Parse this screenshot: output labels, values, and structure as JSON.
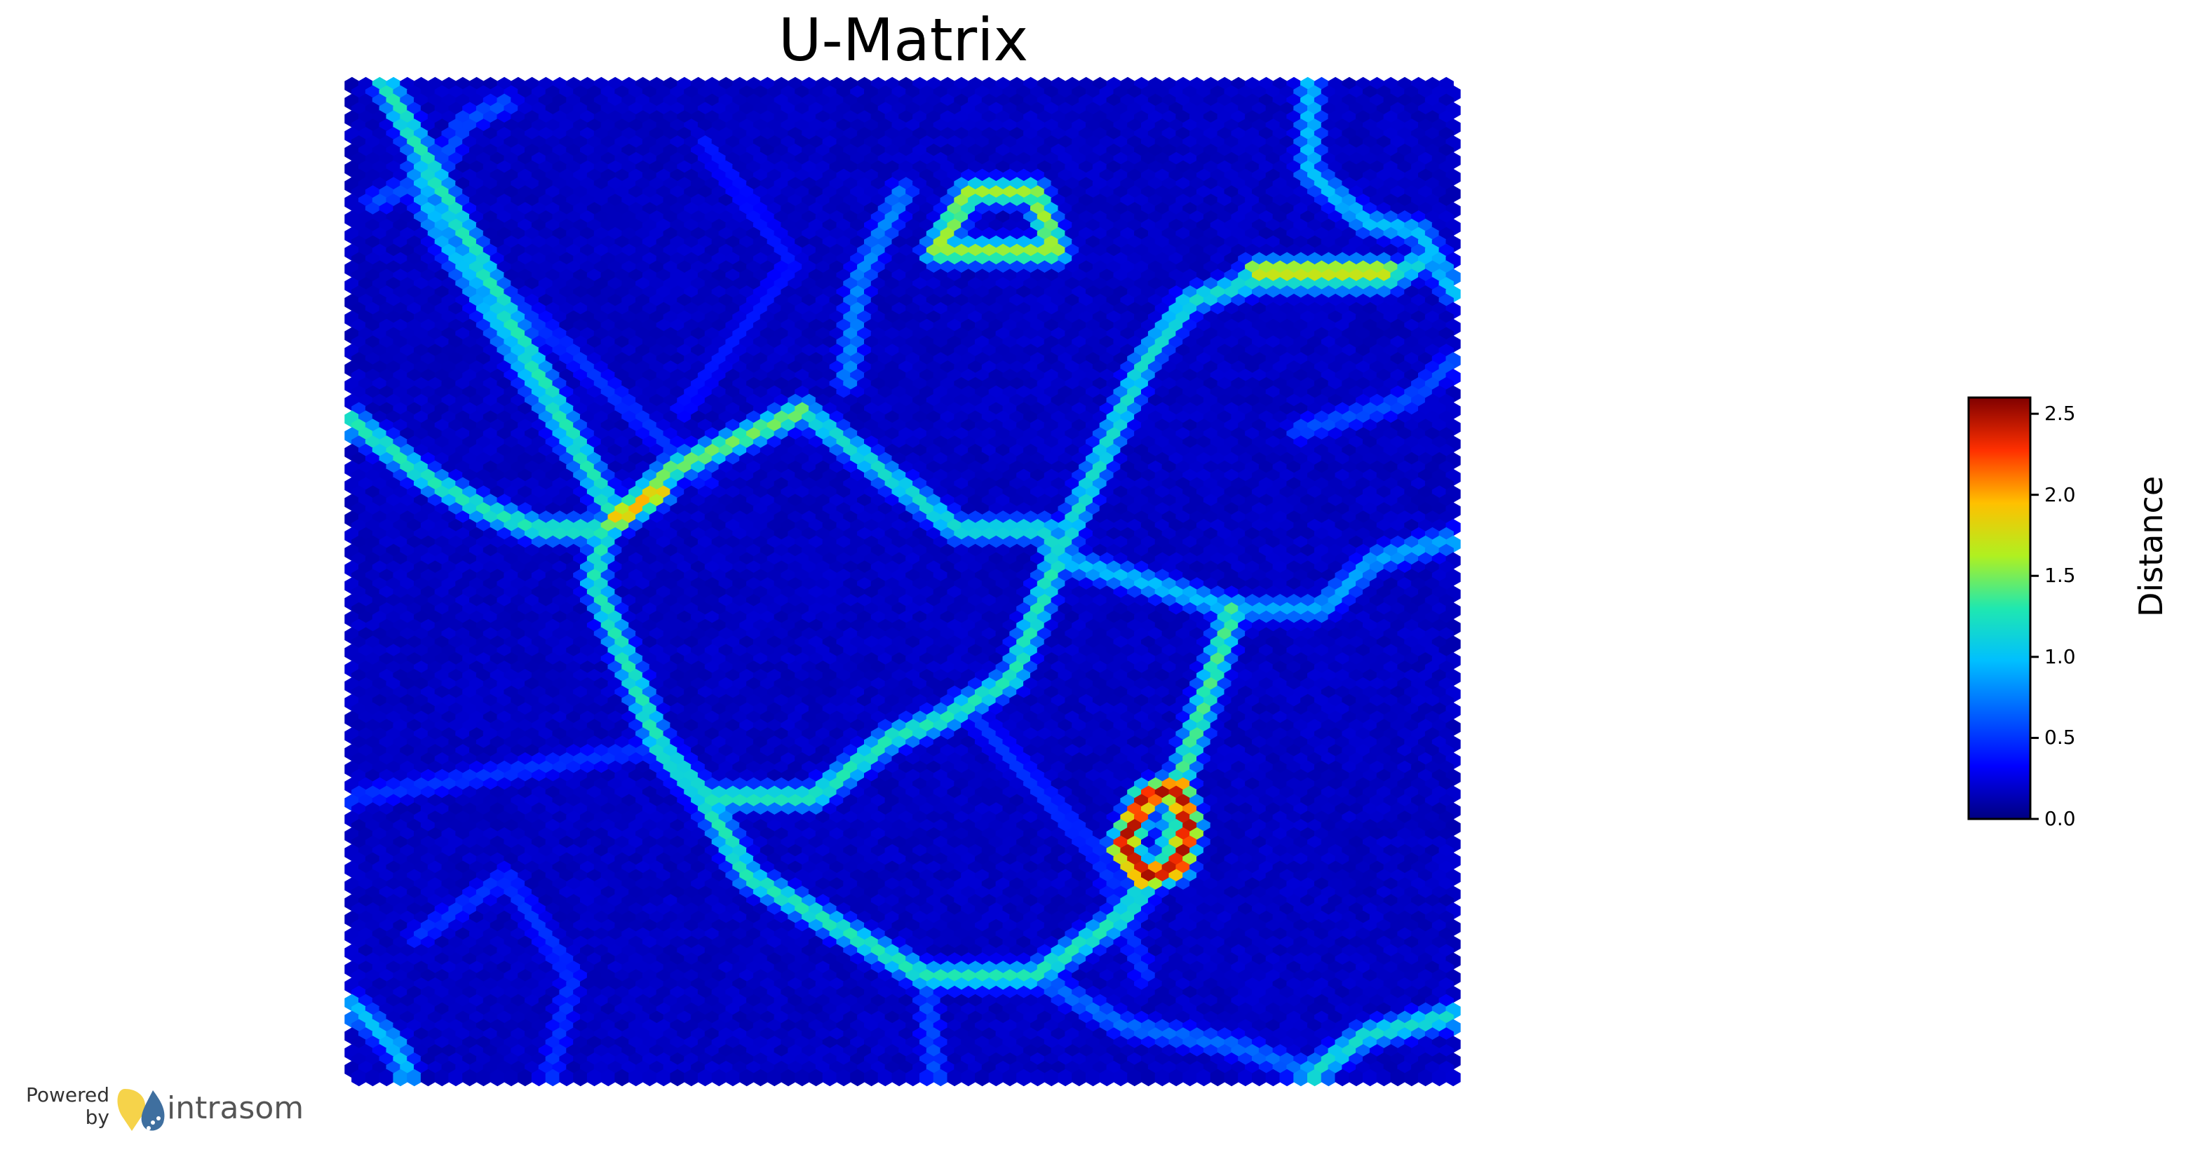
{
  "chart_data": {
    "type": "heatmap",
    "title": "U-Matrix",
    "colorbar": {
      "label": "Distance",
      "min": 0.0,
      "max": 2.6,
      "ticks": [
        "0.0",
        "0.5",
        "1.0",
        "1.5",
        "2.0",
        "2.5"
      ],
      "tick_values": [
        0.0,
        0.5,
        1.0,
        1.5,
        2.0,
        2.5
      ],
      "colormap": "jet"
    },
    "grid": {
      "shape": "hexagonal",
      "columns": 80,
      "rows": 120
    },
    "background_value": 0.2,
    "ridges": [
      {
        "points": [
          [
            0.03,
            0.0
          ],
          [
            0.24,
            0.44
          ]
        ],
        "value": 1.3
      },
      {
        "points": [
          [
            0.06,
            0.08
          ],
          [
            0.07,
            0.13
          ],
          [
            0.24,
            0.44
          ]
        ],
        "value": 1.0
      },
      {
        "points": [
          [
            0.0,
            0.34
          ],
          [
            0.07,
            0.4
          ],
          [
            0.12,
            0.43
          ],
          [
            0.17,
            0.45
          ],
          [
            0.23,
            0.45
          ]
        ],
        "value": 1.3
      },
      {
        "points": [
          [
            0.23,
            0.45
          ],
          [
            0.29,
            0.39
          ],
          [
            0.41,
            0.33
          ]
        ],
        "value": 1.5
      },
      {
        "points": [
          [
            0.24,
            0.44
          ],
          [
            0.28,
            0.41
          ]
        ],
        "value": 2.0
      },
      {
        "points": [
          [
            0.41,
            0.33
          ],
          [
            0.55,
            0.45
          ],
          [
            0.63,
            0.45
          ],
          [
            0.64,
            0.48
          ]
        ],
        "value": 1.2
      },
      {
        "points": [
          [
            0.23,
            0.45
          ],
          [
            0.22,
            0.5
          ],
          [
            0.28,
            0.67
          ],
          [
            0.32,
            0.72
          ],
          [
            0.42,
            0.72
          ],
          [
            0.49,
            0.66
          ],
          [
            0.54,
            0.64
          ],
          [
            0.6,
            0.6
          ],
          [
            0.64,
            0.48
          ]
        ],
        "value": 1.3
      },
      {
        "points": [
          [
            0.32,
            0.72
          ],
          [
            0.36,
            0.8
          ],
          [
            0.52,
            0.9
          ],
          [
            0.62,
            0.9
          ],
          [
            0.7,
            0.84
          ],
          [
            0.74,
            0.78
          ],
          [
            0.75,
            0.71
          ]
        ],
        "value": 1.3
      },
      {
        "points": [
          [
            0.64,
            0.48
          ],
          [
            0.71,
            0.5
          ],
          [
            0.8,
            0.53
          ]
        ],
        "value": 1.0
      },
      {
        "points": [
          [
            0.8,
            0.53
          ],
          [
            0.77,
            0.64
          ],
          [
            0.75,
            0.71
          ]
        ],
        "value": 1.4
      },
      {
        "points": [
          [
            0.75,
            0.71
          ],
          [
            0.76,
            0.75
          ],
          [
            0.75,
            0.79
          ],
          [
            0.72,
            0.8
          ],
          [
            0.7,
            0.77
          ],
          [
            0.72,
            0.72
          ],
          [
            0.75,
            0.71
          ]
        ],
        "value": 2.5
      },
      {
        "points": [
          [
            0.64,
            0.48
          ],
          [
            0.68,
            0.38
          ],
          [
            0.72,
            0.28
          ],
          [
            0.76,
            0.22
          ],
          [
            0.82,
            0.2
          ],
          [
            0.94,
            0.2
          ],
          [
            0.97,
            0.18
          ]
        ],
        "value": 1.2
      },
      {
        "points": [
          [
            0.82,
            0.19
          ],
          [
            0.94,
            0.19
          ]
        ],
        "value": 1.8
      },
      {
        "points": [
          [
            0.53,
            0.17
          ],
          [
            0.56,
            0.11
          ],
          [
            0.62,
            0.11
          ],
          [
            0.64,
            0.17
          ],
          [
            0.53,
            0.17
          ]
        ],
        "value": 1.6
      },
      {
        "points": [
          [
            0.87,
            0.0
          ],
          [
            0.87,
            0.09
          ],
          [
            0.92,
            0.14
          ],
          [
            0.97,
            0.15
          ],
          [
            1.0,
            0.21
          ]
        ],
        "value": 1.0
      },
      {
        "points": [
          [
            0.8,
            0.53
          ],
          [
            0.88,
            0.53
          ],
          [
            0.93,
            0.48
          ],
          [
            1.0,
            0.46
          ]
        ],
        "value": 0.9
      },
      {
        "points": [
          [
            0.52,
            0.9
          ],
          [
            0.53,
            1.0
          ]
        ],
        "value": 0.6
      },
      {
        "points": [
          [
            0.87,
            1.0
          ],
          [
            0.92,
            0.96
          ],
          [
            1.0,
            0.94
          ]
        ],
        "value": 1.2
      },
      {
        "points": [
          [
            0.0,
            0.93
          ],
          [
            0.04,
            0.97
          ],
          [
            0.05,
            1.0
          ]
        ],
        "value": 1.0
      },
      {
        "points": [
          [
            0.5,
            0.11
          ],
          [
            0.46,
            0.2
          ],
          [
            0.45,
            0.3
          ]
        ],
        "value": 0.8
      },
      {
        "points": [
          [
            0.62,
            0.9
          ],
          [
            0.7,
            0.95
          ],
          [
            0.8,
            0.97
          ],
          [
            0.88,
            1.0
          ]
        ],
        "value": 0.7
      },
      {
        "points": [
          [
            0.0,
            0.72
          ],
          [
            0.22,
            0.68
          ],
          [
            0.28,
            0.67
          ]
        ],
        "value": 0.5
      },
      {
        "points": [
          [
            0.02,
            0.12
          ],
          [
            0.08,
            0.09
          ],
          [
            0.1,
            0.04
          ],
          [
            0.14,
            0.02
          ]
        ],
        "value": 0.6
      },
      {
        "points": [
          [
            0.15,
            0.22
          ],
          [
            0.32,
            0.4
          ]
        ],
        "value": 0.5
      },
      {
        "points": [
          [
            0.32,
            0.06
          ],
          [
            0.4,
            0.18
          ],
          [
            0.3,
            0.33
          ]
        ],
        "value": 0.4
      },
      {
        "points": [
          [
            0.55,
            0.62
          ],
          [
            0.68,
            0.78
          ],
          [
            0.72,
            0.9
          ]
        ],
        "value": 0.5
      },
      {
        "points": [
          [
            0.86,
            0.35
          ],
          [
            0.96,
            0.32
          ],
          [
            1.0,
            0.28
          ]
        ],
        "value": 0.6
      },
      {
        "points": [
          [
            0.06,
            0.86
          ],
          [
            0.14,
            0.8
          ],
          [
            0.2,
            0.9
          ],
          [
            0.18,
            1.0
          ]
        ],
        "value": 0.5
      }
    ]
  },
  "branding": {
    "powered_line1": "Powered",
    "powered_line2": "by",
    "name": "intrasom"
  }
}
